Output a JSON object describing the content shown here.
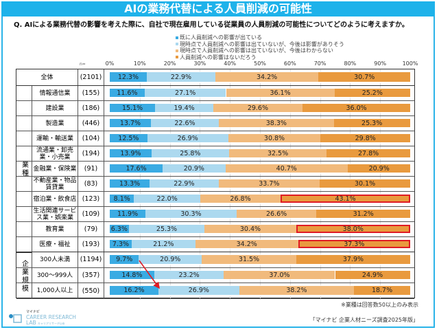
{
  "title": "AIの業務代替による人員削減の可能性",
  "question": "Q.  AIによる業務代替の影響を考えた際に、自社で現在雇用している従業員の人員削減の可能性についてどのように考えますか。",
  "n_label": "n=",
  "note": "※業種は回答数50以上のみ表示",
  "source": "「マイナビ 企業人材ニーズ調査2025年版」",
  "logo": {
    "small": "マイナビ",
    "line1": "CAREER RESEARCH",
    "line2": "LAB",
    "sub": "キャリアリサーチLab"
  },
  "chart_data": {
    "type": "bar",
    "stacked": true,
    "orientation": "horizontal",
    "xlim": [
      0,
      100
    ],
    "ticks": [
      "0%",
      "10%",
      "20%",
      "30%",
      "40%",
      "50%",
      "60%",
      "70%",
      "80%",
      "90%",
      "100%"
    ],
    "legend_position": "top-right",
    "series": [
      {
        "name": "既に人員削減への影響が出ている",
        "color": "#3aabe3"
      },
      {
        "name": "現時点で人員削減への影響は出ていないが、今後は影響がありそう",
        "color": "#acd9ef"
      },
      {
        "name": "現時点で人員削減への影響は出ていないが、今後はわからない",
        "color": "#f1ba7c"
      },
      {
        "name": "人員削減への影響はないだろう",
        "color": "#e99a3e"
      }
    ],
    "groups": [
      {
        "label": "業種",
        "from": 1,
        "to": 11
      },
      {
        "label": "企業規模",
        "from": 12,
        "to": 14
      }
    ],
    "rows": [
      {
        "label": "全体",
        "n": "(2101)",
        "values": [
          12.3,
          22.9,
          34.2,
          30.7
        ]
      },
      {
        "label": "情報通信業",
        "n": "(155)",
        "values": [
          11.6,
          27.1,
          36.1,
          25.2
        ]
      },
      {
        "label": "建設業",
        "n": "(186)",
        "values": [
          15.1,
          19.4,
          29.6,
          36.0
        ]
      },
      {
        "label": "製造業",
        "n": "(446)",
        "values": [
          13.7,
          22.6,
          38.3,
          25.3
        ]
      },
      {
        "label": "運輸・輸送業",
        "n": "(104)",
        "values": [
          12.5,
          26.9,
          30.8,
          29.8
        ]
      },
      {
        "label": "流通業・卸売業・小売業",
        "n": "(194)",
        "values": [
          13.9,
          25.8,
          32.5,
          27.8
        ]
      },
      {
        "label": "金融業・保険業",
        "n": "(91)",
        "values": [
          17.6,
          20.9,
          40.7,
          20.9
        ]
      },
      {
        "label": "不動産業・物品賃貸業",
        "n": "(83)",
        "values": [
          13.3,
          22.9,
          33.7,
          30.1
        ]
      },
      {
        "label": "宿泊業・飲食店",
        "n": "(123)",
        "values": [
          8.1,
          22.0,
          26.8,
          43.1
        ],
        "highlight": 3
      },
      {
        "label": "生活関連サービス業・娯楽業",
        "n": "(109)",
        "values": [
          11.9,
          30.3,
          26.6,
          31.2
        ]
      },
      {
        "label": "教育業",
        "n": "(79)",
        "values": [
          6.3,
          25.3,
          30.4,
          38.0
        ],
        "highlight": 3
      },
      {
        "label": "医療・福祉",
        "n": "(193)",
        "values": [
          7.3,
          21.2,
          34.2,
          37.3
        ],
        "highlight": 3
      },
      {
        "label": "300人未満",
        "n": "(1194)",
        "values": [
          9.7,
          20.9,
          31.5,
          37.9
        ]
      },
      {
        "label": "300～999人",
        "n": "(357)",
        "values": [
          14.8,
          23.2,
          37.0,
          24.9
        ]
      },
      {
        "label": "1,000人以上",
        "n": "(550)",
        "values": [
          16.2,
          26.9,
          38.2,
          18.7
        ]
      }
    ],
    "annotations": [
      {
        "type": "arrow",
        "color": "#e01b24",
        "from_row": "300人未満",
        "to_row": "1,000人以上"
      }
    ]
  }
}
